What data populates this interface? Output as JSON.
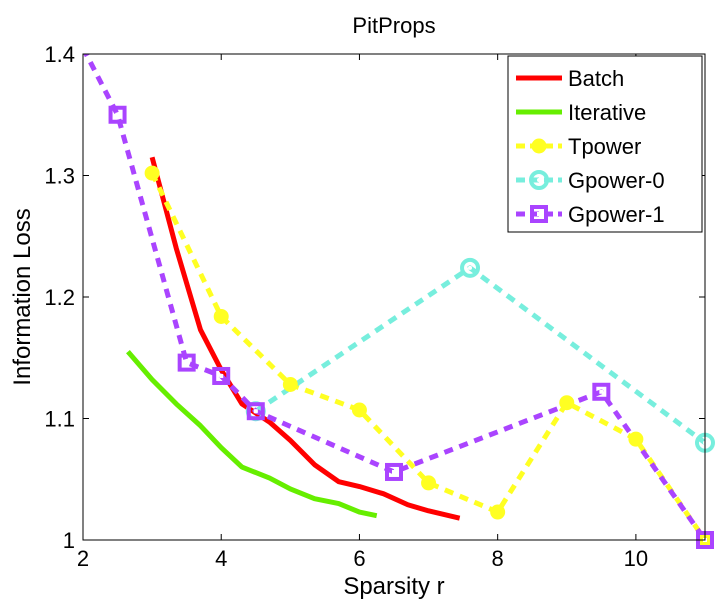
{
  "chart_data": {
    "type": "line",
    "title": "PitProps",
    "xlabel": "Sparsity r",
    "ylabel": "Information Loss",
    "xlim": [
      2,
      11
    ],
    "ylim": [
      1.0,
      1.4
    ],
    "xticks": [
      2,
      4,
      6,
      8,
      10
    ],
    "yticks": [
      1.0,
      1.1,
      1.2,
      1.3,
      1.4
    ],
    "xtick_labels": [
      "2",
      "4",
      "6",
      "8",
      "10"
    ],
    "ytick_labels": [
      "1",
      "1.1",
      "1.2",
      "1.3",
      "1.4"
    ],
    "grid": false,
    "legend_position": "top-right",
    "series": [
      {
        "name": "Batch",
        "color": "#ff0000",
        "style": "solid",
        "marker": "none",
        "x": [
          3.0,
          3.35,
          3.7,
          4.0,
          4.3,
          4.7,
          5.0,
          5.35,
          5.7,
          6.0,
          6.35,
          6.7,
          7.0,
          7.45
        ],
        "y": [
          1.315,
          1.24,
          1.173,
          1.14,
          1.112,
          1.097,
          1.082,
          1.062,
          1.048,
          1.044,
          1.038,
          1.029,
          1.024,
          1.018
        ]
      },
      {
        "name": "Iterative",
        "color": "#66ee00",
        "style": "solid",
        "marker": "none",
        "x": [
          2.65,
          3.0,
          3.35,
          3.7,
          4.0,
          4.3,
          4.7,
          5.0,
          5.35,
          5.7,
          6.0,
          6.25
        ],
        "y": [
          1.155,
          1.132,
          1.112,
          1.094,
          1.076,
          1.06,
          1.051,
          1.042,
          1.034,
          1.03,
          1.023,
          1.02
        ]
      },
      {
        "name": "Tpower",
        "color": "#ffff22",
        "style": "dashed",
        "marker": "circle",
        "x": [
          3.0,
          4.0,
          5.0,
          6.0,
          7.0,
          8.0,
          9.0,
          10.0,
          11.0
        ],
        "y": [
          1.302,
          1.184,
          1.128,
          1.107,
          1.047,
          1.023,
          1.113,
          1.083,
          1.0
        ]
      },
      {
        "name": "Gpower-0",
        "color": "#77eedd",
        "style": "dashed",
        "marker": "ring",
        "x": [
          4.5,
          7.6,
          11.0
        ],
        "y": [
          1.106,
          1.224,
          1.08
        ]
      },
      {
        "name": "Gpower-1",
        "color": "#aa44ff",
        "style": "dashed",
        "marker": "square",
        "x": [
          2.0,
          2.5,
          3.5,
          4.0,
          4.5,
          6.5,
          9.5,
          11.0
        ],
        "y": [
          1.405,
          1.35,
          1.146,
          1.135,
          1.106,
          1.056,
          1.122,
          1.0
        ],
        "marker_x": [
          2.5,
          3.5,
          4.0,
          4.5,
          6.5,
          9.5,
          11.0
        ],
        "marker_y": [
          1.35,
          1.146,
          1.135,
          1.106,
          1.056,
          1.122,
          1.0
        ]
      }
    ]
  }
}
